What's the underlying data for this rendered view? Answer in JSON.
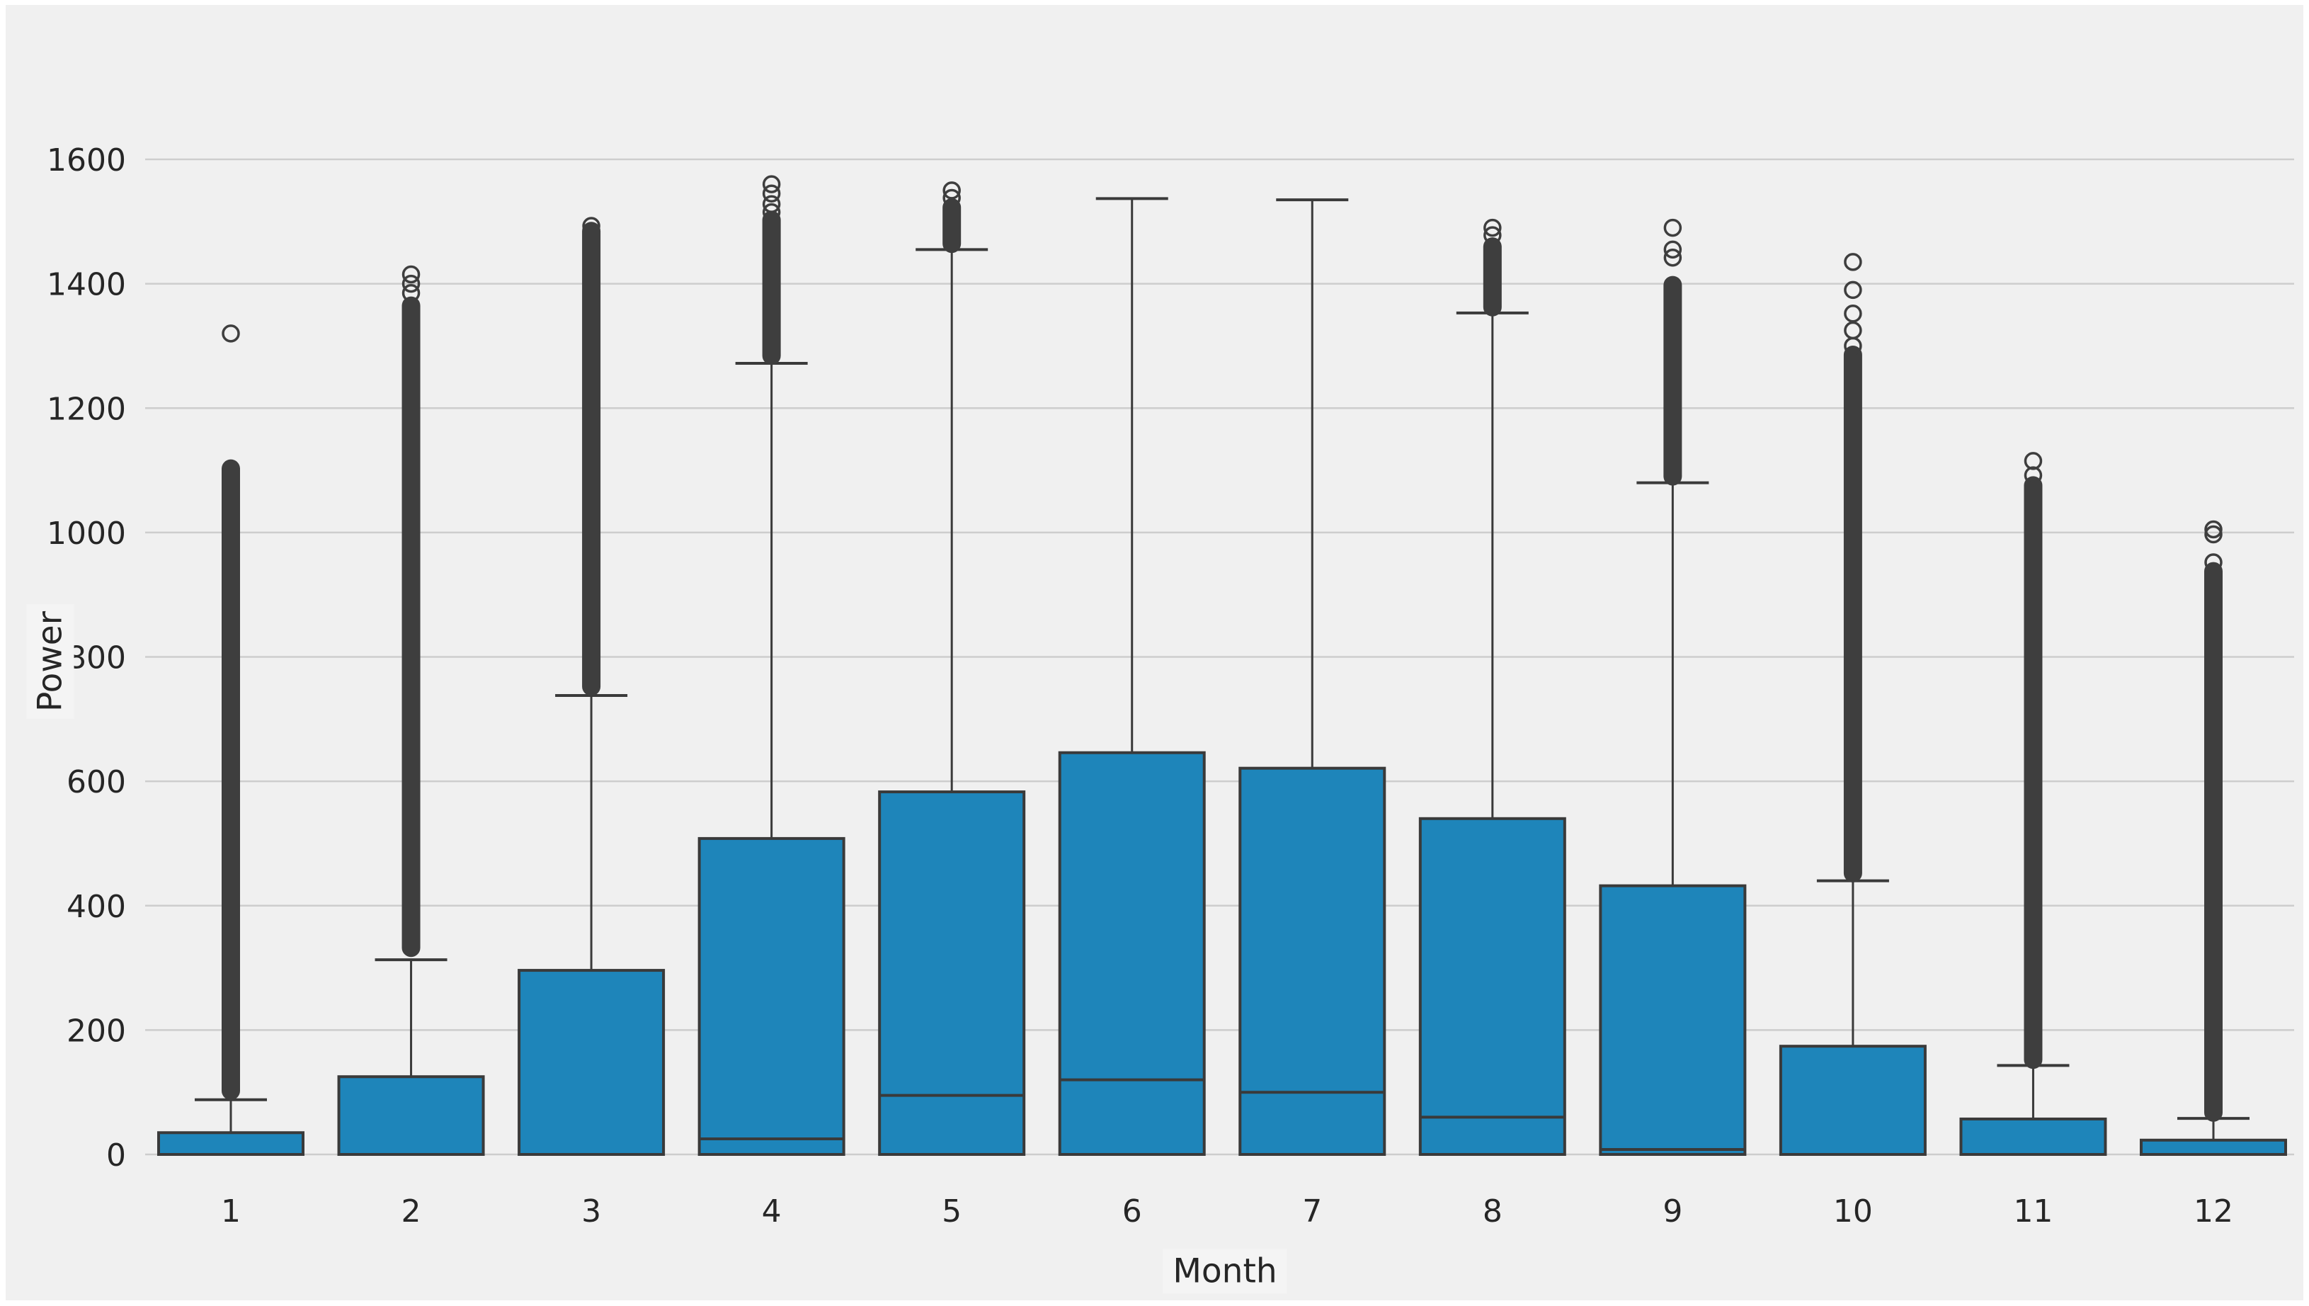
{
  "chart_data": {
    "type": "box",
    "title": "",
    "xlabel": "Month",
    "ylabel": "Power",
    "grid": true,
    "legend": "none",
    "background_color": "#f0f0f0",
    "gridline_color": "#cdcdcd",
    "box_fill_color": "#1e85ba",
    "box_edge_color": "#3a3a3a",
    "flier_color": "#3e3e3e",
    "text_color": "#262626",
    "ylim": [
      0,
      1690
    ],
    "yticks": [
      0,
      200,
      400,
      600,
      800,
      1000,
      1200,
      1400,
      1600
    ],
    "categories": [
      "1",
      "2",
      "3",
      "4",
      "5",
      "6",
      "7",
      "8",
      "9",
      "10",
      "11",
      "12"
    ],
    "boxes": [
      {
        "month": "1",
        "q1": 0,
        "median": 0,
        "q3": 35,
        "whisker_low": 0,
        "whisker_high": 88,
        "outlier_band": [
          100,
          1105
        ],
        "outlier_circles": [
          1320
        ]
      },
      {
        "month": "2",
        "q1": 0,
        "median": 0,
        "q3": 125,
        "whisker_low": 0,
        "whisker_high": 313,
        "outlier_band": [
          330,
          1367
        ],
        "outlier_circles": [
          1385,
          1400,
          1415
        ]
      },
      {
        "month": "3",
        "q1": 0,
        "median": 0,
        "q3": 296,
        "whisker_low": 0,
        "whisker_high": 738,
        "outlier_band": [
          750,
          1487
        ],
        "outlier_circles": [
          1493
        ]
      },
      {
        "month": "4",
        "q1": 0,
        "median": 25,
        "q3": 508,
        "whisker_low": 0,
        "whisker_high": 1272,
        "outlier_band": [
          1282,
          1505
        ],
        "outlier_circles": [
          1515,
          1528,
          1545,
          1560
        ]
      },
      {
        "month": "5",
        "q1": 0,
        "median": 95,
        "q3": 583,
        "whisker_low": 0,
        "whisker_high": 1455,
        "outlier_band": [
          1462,
          1525
        ],
        "outlier_circles": [
          1538,
          1550
        ]
      },
      {
        "month": "6",
        "q1": 0,
        "median": 120,
        "q3": 646,
        "whisker_low": 0,
        "whisker_high": 1537,
        "outlier_band": null,
        "outlier_circles": []
      },
      {
        "month": "7",
        "q1": 0,
        "median": 100,
        "q3": 621,
        "whisker_low": 0,
        "whisker_high": 1535,
        "outlier_band": null,
        "outlier_circles": []
      },
      {
        "month": "8",
        "q1": 0,
        "median": 60,
        "q3": 540,
        "whisker_low": 0,
        "whisker_high": 1353,
        "outlier_band": [
          1360,
          1462
        ],
        "outlier_circles": [
          1478,
          1490
        ]
      },
      {
        "month": "9",
        "q1": 0,
        "median": 8,
        "q3": 432,
        "whisker_low": 0,
        "whisker_high": 1080,
        "outlier_band": [
          1088,
          1400
        ],
        "outlier_circles": [
          1442,
          1455,
          1490
        ]
      },
      {
        "month": "10",
        "q1": 0,
        "median": 0,
        "q3": 174,
        "whisker_low": 0,
        "whisker_high": 440,
        "outlier_band": [
          450,
          1288
        ],
        "outlier_circles": [
          1300,
          1325,
          1352,
          1390,
          1435
        ]
      },
      {
        "month": "11",
        "q1": 0,
        "median": 0,
        "q3": 57,
        "whisker_low": 0,
        "whisker_high": 143,
        "outlier_band": [
          150,
          1078
        ],
        "outlier_circles": [
          1092,
          1115
        ]
      },
      {
        "month": "12",
        "q1": 0,
        "median": 0,
        "q3": 23,
        "whisker_low": 0,
        "whisker_high": 58,
        "outlier_band": [
          65,
          940
        ],
        "outlier_circles": [
          952,
          997,
          1005
        ]
      }
    ]
  }
}
